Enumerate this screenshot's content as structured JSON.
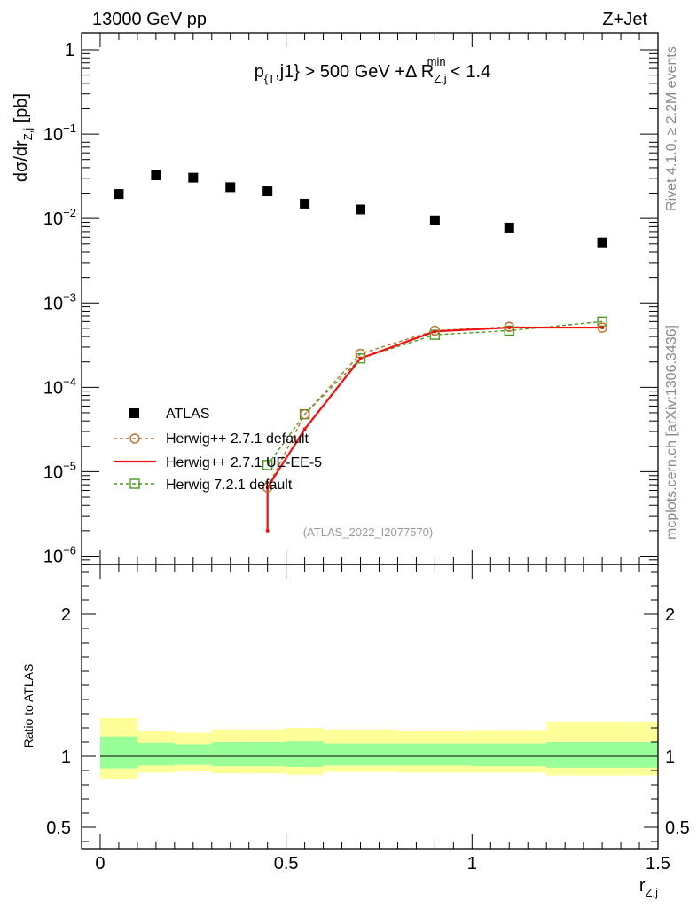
{
  "header": {
    "left": "13000 GeV pp",
    "right": "Z+Jet"
  },
  "side_labels": {
    "rivet": "Rivet 4.1.0, ≥ 2.2M events",
    "mcplots": "mcplots.cern.ch [arXiv:1306.3436]"
  },
  "watermark": "(ATLAS_2022_I2077570)",
  "colors": {
    "data": "#000000",
    "herwigpp_default": "#b8742c",
    "herwigpp_ueee5": "#ee1111",
    "herwig7": "#4b9a24",
    "band_inner": "#99ff99",
    "band_outer": "#ffff99"
  },
  "chart_data": [
    {
      "type": "scatter",
      "title_parts": {
        "a": "p",
        "a_sub": "{T",
        "b": ",j1} > 500 GeV +Δ R",
        "b_sub": "Z,j",
        "b_sup": "min",
        "c": " < 1.4"
      },
      "ylabel": {
        "main": "dσ/dr",
        "sub": "Z,j",
        "unit": " [pb]"
      },
      "xlim": [
        -0.05,
        1.5
      ],
      "ylim_log10": [
        -6.1,
        0.2
      ],
      "yscale": "log",
      "y_ticks": [
        {
          "exp": 0,
          "base": "1",
          "sup": ""
        },
        {
          "exp": -1,
          "base": "10",
          "sup": "−1"
        },
        {
          "exp": -2,
          "base": "10",
          "sup": "−2"
        },
        {
          "exp": -3,
          "base": "10",
          "sup": "−3"
        },
        {
          "exp": -4,
          "base": "10",
          "sup": "−4"
        },
        {
          "exp": -5,
          "base": "10",
          "sup": "−5"
        },
        {
          "exp": -6,
          "base": "10",
          "sup": "−6"
        }
      ],
      "legend": [
        "ATLAS",
        "Herwig++ 2.7.1 default",
        "Herwig++ 2.7.1 UE-EE-5",
        "Herwig 7.2.1 default"
      ],
      "series": [
        {
          "name": "ATLAS",
          "x": [
            0.05,
            0.15,
            0.25,
            0.35,
            0.45,
            0.55,
            0.7,
            0.9,
            1.1,
            1.35
          ],
          "y": [
            0.0195,
            0.0325,
            0.0305,
            0.0235,
            0.021,
            0.015,
            0.0128,
            0.0095,
            0.0078,
            0.0052
          ]
        },
        {
          "name": "Herwig++ 2.7.1 default",
          "x": [
            0.45,
            0.55,
            0.7,
            0.9,
            1.1,
            1.35
          ],
          "y": [
            6.5e-06,
            4.8e-05,
            0.00025,
            0.00047,
            0.00052,
            0.00051
          ]
        },
        {
          "name": "Herwig++ 2.7.1 UE-EE-5",
          "x": [
            0.45,
            0.55,
            0.7,
            0.9,
            1.1,
            1.35
          ],
          "y": [
            6.5e-06,
            3.2e-05,
            0.00022,
            0.00046,
            0.00051,
            0.00051
          ],
          "drop_to": 2e-06
        },
        {
          "name": "Herwig 7.2.1 default",
          "x": [
            0.45,
            0.55,
            0.7,
            0.9,
            1.1,
            1.35
          ],
          "y": [
            1.2e-05,
            4.8e-05,
            0.00022,
            0.00042,
            0.00047,
            0.0006
          ]
        }
      ]
    },
    {
      "type": "area",
      "ylabel": "Ratio to ATLAS",
      "xlabel_parts": {
        "main": "r",
        "sub": "Z,j"
      },
      "xlim": [
        -0.05,
        1.5
      ],
      "ylim": [
        0.35,
        2.35
      ],
      "x_ticks": [
        {
          "v": 0,
          "label": "0"
        },
        {
          "v": 0.5,
          "label": "0.5"
        },
        {
          "v": 1,
          "label": "1"
        },
        {
          "v": 1.5,
          "label": "1.5"
        }
      ],
      "y_ticks": [
        {
          "v": 0.5,
          "label": "0.5"
        },
        {
          "v": 1,
          "label": "1"
        },
        {
          "v": 2,
          "label": "2"
        }
      ],
      "bin_edges": [
        0,
        0.1,
        0.2,
        0.3,
        0.4,
        0.5,
        0.6,
        0.8,
        1.0,
        1.2,
        1.5
      ],
      "band_inner": [
        [
          0.915,
          1.14
        ],
        [
          0.935,
          1.095
        ],
        [
          0.94,
          1.085
        ],
        [
          0.93,
          1.1
        ],
        [
          0.93,
          1.1
        ],
        [
          0.925,
          1.105
        ],
        [
          0.935,
          1.09
        ],
        [
          0.935,
          1.09
        ],
        [
          0.93,
          1.09
        ],
        [
          0.92,
          1.1
        ]
      ],
      "band_outer": [
        [
          0.84,
          1.27
        ],
        [
          0.885,
          1.18
        ],
        [
          0.895,
          1.165
        ],
        [
          0.88,
          1.19
        ],
        [
          0.88,
          1.19
        ],
        [
          0.87,
          1.2
        ],
        [
          0.89,
          1.19
        ],
        [
          0.885,
          1.18
        ],
        [
          0.885,
          1.185
        ],
        [
          0.865,
          1.245
        ]
      ],
      "reference": 1
    }
  ]
}
